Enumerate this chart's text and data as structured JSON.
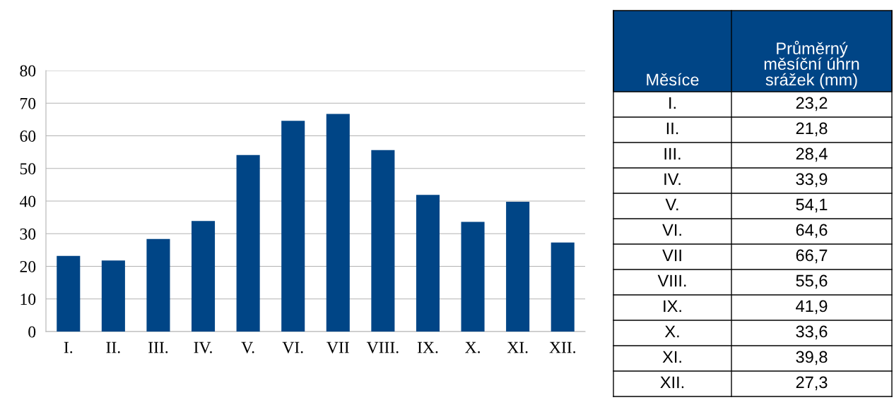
{
  "chart_data": [
    {
      "type": "bar",
      "categories": [
        "I.",
        "II.",
        "III.",
        "IV.",
        "V.",
        "VI.",
        "VII",
        "VIII.",
        "IX.",
        "X.",
        "XI.",
        "XII."
      ],
      "values": [
        23.2,
        21.8,
        28.4,
        33.9,
        54.1,
        64.6,
        66.7,
        55.6,
        41.9,
        33.6,
        39.8,
        27.3
      ],
      "color": "#004586",
      "ylim": [
        0,
        80
      ],
      "yticks": [
        0,
        10,
        20,
        30,
        40,
        50,
        60,
        70,
        80
      ],
      "grid": "y"
    },
    {
      "type": "other",
      "annotations": [
        "Měsíce",
        "Průměrný měsíční úhrn srážek (mm)",
        "I.",
        "23,2",
        "II.",
        "21,8",
        "III.",
        "28,4",
        "IV.",
        "33,9",
        "V.",
        "54,1",
        "VI.",
        "64,6",
        "VII",
        "66,7",
        "VIII.",
        "55,6",
        "IX.",
        "41,9",
        "X.",
        "33,6",
        "XI.",
        "39,8",
        "XII.",
        "27,3"
      ]
    }
  ]
}
